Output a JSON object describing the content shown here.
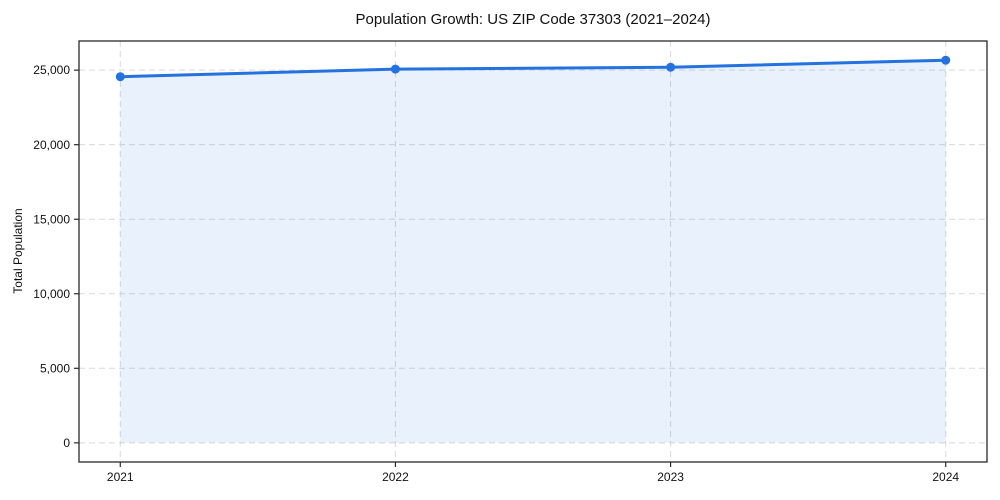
{
  "chart_data": {
    "type": "area",
    "title": "Population Growth: US ZIP Code 37303 (2021–2024)",
    "xlabel": "",
    "ylabel": "Total Population",
    "x": [
      2021,
      2022,
      2023,
      2024
    ],
    "series": [
      {
        "name": "Total Population",
        "values": [
          24560,
          25070,
          25200,
          25670
        ]
      }
    ],
    "x_tick_labels": [
      "2021",
      "2022",
      "2023",
      "2024"
    ],
    "y_ticks": [
      0,
      5000,
      10000,
      15000,
      20000,
      25000
    ],
    "y_tick_labels": [
      "0",
      "5,000",
      "10,000",
      "15,000",
      "20,000",
      "25,000"
    ],
    "xlim": [
      2020.85,
      2024.15
    ],
    "ylim": [
      -1285,
      26955
    ],
    "grid": true,
    "grid_style": "dashed",
    "legend": "none",
    "fill_to_zero": true,
    "colors": {
      "line": "#2372e0",
      "marker": "#2372e0",
      "fill": "rgba(35,114,224,0.10)",
      "gridline": "#d9d9d9",
      "spine": "#2a2a2a",
      "text": "#111111",
      "background": "#ffffff"
    }
  }
}
